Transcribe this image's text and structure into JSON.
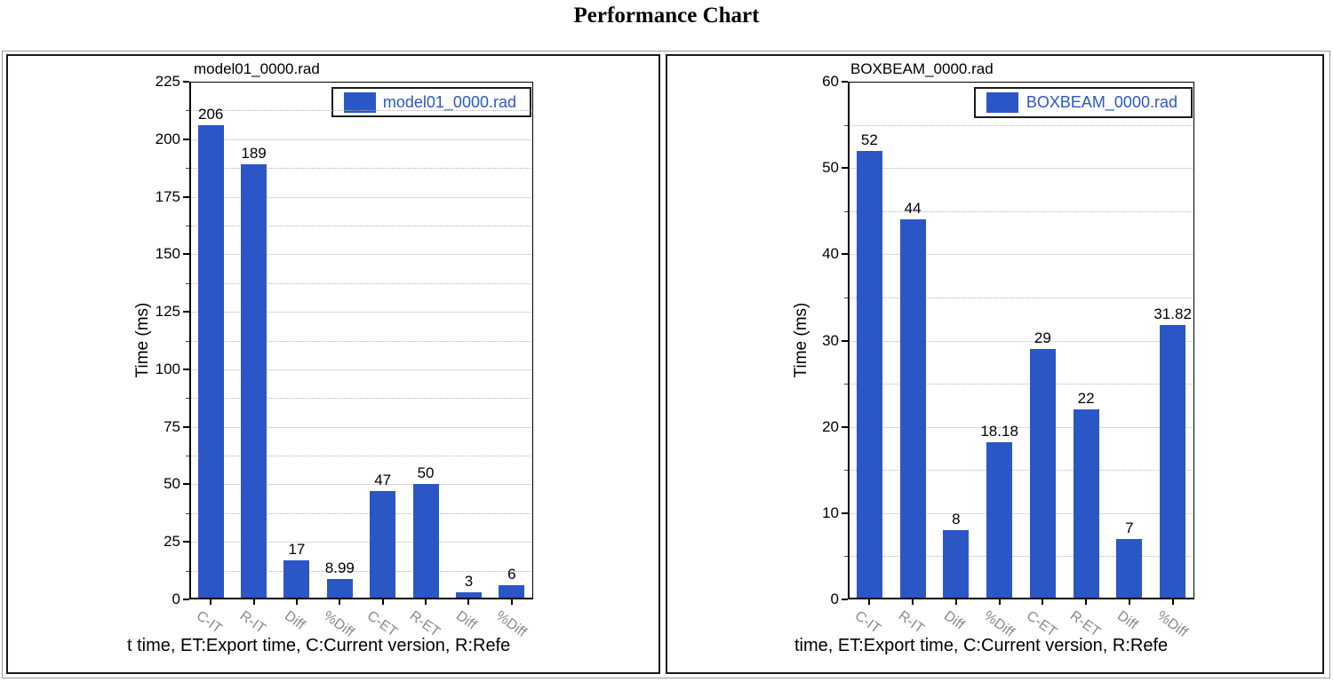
{
  "page": {
    "title": "Performance Chart"
  },
  "colors": {
    "bar": "#2b56c6",
    "legend_text": "#2b56c6",
    "grid_major": "#d9d9d9",
    "grid_minor": "#b5b5b5",
    "xlabel_gray": "#8a8a8a"
  },
  "chart_data": [
    {
      "type": "bar",
      "title": "model01_0000.rad",
      "legend": "model01_0000.rad",
      "legend_swatch": "blue-square",
      "legend_position": "top-right",
      "ylabel": "Time (ms)",
      "caption": "t time, ET:Export time, C:Current version, R:Refe",
      "categories": [
        "C-IT",
        "R-IT",
        "Diff",
        "%Diff",
        "C-ET",
        "R-ET",
        "Diff",
        "%Diff"
      ],
      "values": [
        206,
        189,
        17,
        8.99,
        47,
        50,
        3,
        6
      ],
      "value_labels": [
        "206",
        "189",
        "17",
        "8.99",
        "47",
        "50",
        "3",
        "6"
      ],
      "ylim": [
        0,
        225
      ],
      "ytick_step": 25,
      "minor_step": 12.5,
      "grid": "major-solid-minor-dotted"
    },
    {
      "type": "bar",
      "title": "BOXBEAM_0000.rad",
      "legend": "BOXBEAM_0000.rad",
      "legend_swatch": "blue-square",
      "legend_position": "top-right",
      "ylabel": "Time (ms)",
      "caption": "time, ET:Export time, C:Current version, R:Refe",
      "categories": [
        "C-IT",
        "R-IT",
        "Diff",
        "%Diff",
        "C-ET",
        "R-ET",
        "Diff",
        "%Diff"
      ],
      "values": [
        52,
        44,
        8,
        18.18,
        29,
        22,
        7,
        31.82
      ],
      "value_labels": [
        "52",
        "44",
        "8",
        "18.18",
        "29",
        "22",
        "7",
        "31.82"
      ],
      "ylim": [
        0,
        60
      ],
      "ytick_step": 10,
      "minor_step": 5,
      "grid": "major-solid-minor-dotted"
    }
  ]
}
